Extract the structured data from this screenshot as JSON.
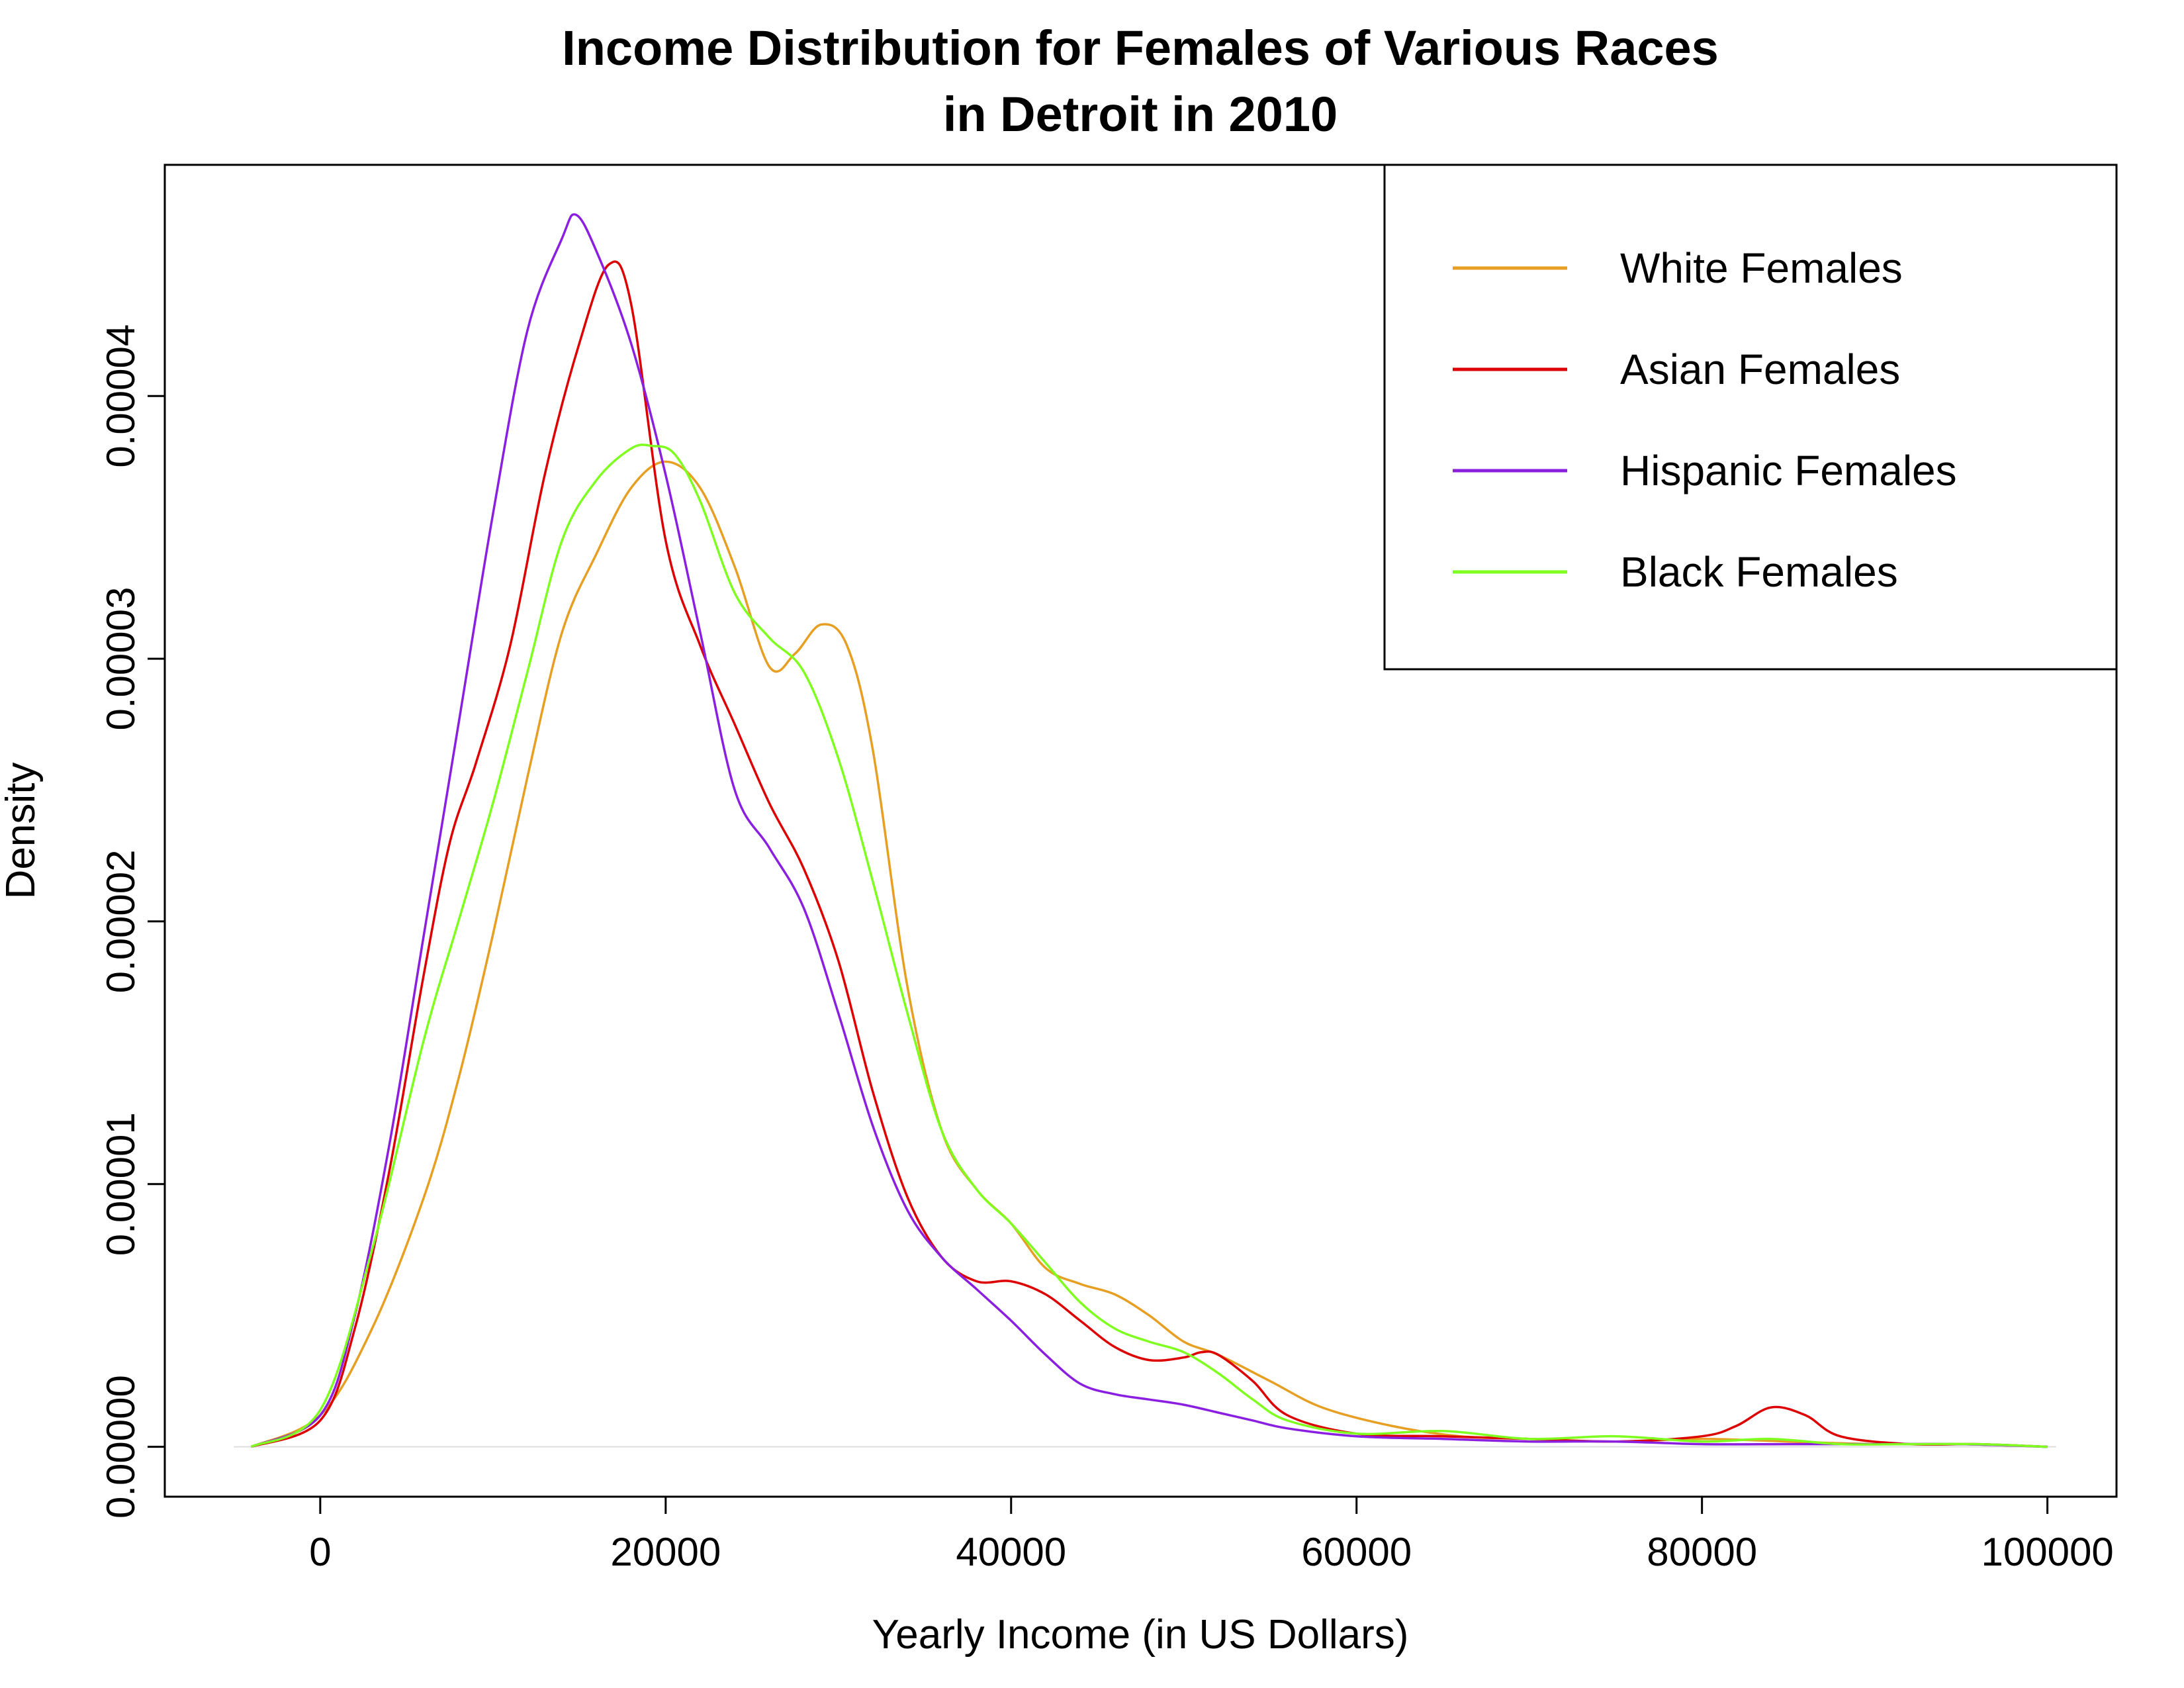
{
  "chart_data": {
    "type": "line",
    "title": "Income Distribution for Females of Various Races",
    "subtitle": "in Detroit in 2010",
    "xlabel": "Yearly Income (in US Dollars)",
    "ylabel": "Density",
    "xlim": [
      -9000,
      104000
    ],
    "ylim": [
      -1.9e-06,
      4.88e-05
    ],
    "x_ticks": [
      0,
      20000,
      40000,
      60000,
      80000,
      100000
    ],
    "x_tick_labels": [
      "0",
      "20000",
      "40000",
      "60000",
      "80000",
      "100000"
    ],
    "y_ticks": [
      0,
      1e-05,
      2e-05,
      3e-05,
      4e-05
    ],
    "y_tick_labels": [
      "0.00000",
      "0.00001",
      "0.00002",
      "0.00003",
      "0.00004"
    ],
    "grid": false,
    "legend_position": "top-right",
    "series": [
      {
        "name": "White Females",
        "color": "#E69F22",
        "x": [
          -4000,
          0,
          3000,
          6000,
          8000,
          10000,
          12000,
          14000,
          16000,
          18000,
          20000,
          22000,
          24000,
          26000,
          27500,
          29000,
          30500,
          32000,
          34000,
          36000,
          38000,
          40000,
          42000,
          44000,
          46000,
          48000,
          50000,
          52000,
          55000,
          58000,
          62000,
          66000,
          70000,
          75000,
          80000,
          85000,
          90000,
          95000,
          100000
        ],
        "y": [
          0,
          1.2e-06,
          4.5e-06,
          9.5e-06,
          1.4e-05,
          1.95e-05,
          2.55e-05,
          3.1e-05,
          3.4e-05,
          3.65e-05,
          3.75e-05,
          3.65e-05,
          3.35e-05,
          2.97e-05,
          3.02e-05,
          3.13e-05,
          3.05e-05,
          2.65e-05,
          1.75e-05,
          1.2e-05,
          9.8e-06,
          8.5e-06,
          6.8e-06,
          6.2e-06,
          5.8e-06,
          5e-06,
          4e-06,
          3.5e-06,
          2.5e-06,
          1.5e-06,
          8e-07,
          4e-07,
          3e-07,
          2e-07,
          3e-07,
          2e-07,
          1e-07,
          1e-07,
          0
        ]
      },
      {
        "name": "Asian Females",
        "color": "#DD0000",
        "x": [
          -4000,
          0,
          2000,
          4000,
          6000,
          7500,
          9000,
          11000,
          13000,
          15000,
          16700,
          18000,
          20000,
          22000,
          24000,
          26000,
          28000,
          30000,
          32000,
          34000,
          36000,
          38000,
          40000,
          42000,
          44000,
          46000,
          48000,
          50000,
          51000,
          52000,
          54000,
          56000,
          60000,
          65000,
          70000,
          75000,
          80000,
          82000,
          84000,
          86000,
          88000,
          92000,
          96000,
          100000
        ],
        "y": [
          0,
          1e-06,
          4.5e-06,
          1.05e-05,
          1.8e-05,
          2.3e-05,
          2.6e-05,
          3.05e-05,
          3.7e-05,
          4.2e-05,
          4.5e-05,
          4.35e-05,
          3.45e-05,
          3.05e-05,
          2.75e-05,
          2.45e-05,
          2.2e-05,
          1.85e-05,
          1.35e-05,
          9.5e-06,
          7.2e-06,
          6.3e-06,
          6.3e-06,
          5.8e-06,
          4.8e-06,
          3.8e-06,
          3.3e-06,
          3.4e-06,
          3.6e-06,
          3.5e-06,
          2.5e-06,
          1.2e-06,
          5e-07,
          4e-07,
          3e-07,
          2e-07,
          4e-07,
          8e-07,
          1.5e-06,
          1.2e-06,
          4e-07,
          1e-07,
          1e-07,
          0
        ]
      },
      {
        "name": "Hispanic Females",
        "color": "#8A1FE0",
        "x": [
          -4000,
          0,
          2000,
          4000,
          6000,
          8000,
          10000,
          12000,
          14000,
          14800,
          16000,
          18000,
          20000,
          22000,
          24000,
          26000,
          28000,
          30000,
          32000,
          34000,
          36000,
          38000,
          40000,
          42000,
          44000,
          46000,
          48000,
          50000,
          52000,
          54000,
          56000,
          60000,
          65000,
          70000,
          75000,
          80000,
          85000,
          90000,
          95000,
          100000
        ],
        "y": [
          0,
          1.2e-06,
          5e-06,
          1.15e-05,
          1.95e-05,
          2.75e-05,
          3.55e-05,
          4.25e-05,
          4.6e-05,
          4.69e-05,
          4.55e-05,
          4.2e-05,
          3.7e-05,
          3.1e-05,
          2.5e-05,
          2.28e-05,
          2.05e-05,
          1.65e-05,
          1.22e-05,
          9e-06,
          7.2e-06,
          6e-06,
          4.8e-06,
          3.5e-06,
          2.4e-06,
          2e-06,
          1.8e-06,
          1.6e-06,
          1.3e-06,
          1e-06,
          7e-07,
          4e-07,
          3e-07,
          2e-07,
          2e-07,
          1e-07,
          1e-07,
          1e-07,
          1e-07,
          0
        ]
      },
      {
        "name": "Black Females",
        "color": "#7FFF20",
        "x": [
          -4000,
          0,
          3000,
          6000,
          8000,
          10000,
          12000,
          14000,
          16000,
          18000,
          19200,
          20500,
          22000,
          24000,
          26000,
          28000,
          30000,
          32000,
          34000,
          36000,
          38000,
          40000,
          42000,
          44000,
          46000,
          48000,
          50000,
          52000,
          54000,
          56000,
          60000,
          65000,
          70000,
          75000,
          80000,
          84000,
          88000,
          92000,
          96000,
          100000
        ],
        "y": [
          0,
          1.4e-06,
          7.5e-06,
          1.55e-05,
          2e-05,
          2.45e-05,
          2.95e-05,
          3.45e-05,
          3.68e-05,
          3.8e-05,
          3.81e-05,
          3.78e-05,
          3.6e-05,
          3.25e-05,
          3.08e-05,
          2.95e-05,
          2.62e-05,
          2.15e-05,
          1.65e-05,
          1.2e-05,
          9.8e-06,
          8.5e-06,
          7e-06,
          5.5e-06,
          4.5e-06,
          4e-06,
          3.6e-06,
          2.8e-06,
          1.8e-06,
          1e-06,
          5e-07,
          6e-07,
          3e-07,
          4e-07,
          2e-07,
          3e-07,
          1e-07,
          1e-07,
          1e-07,
          0
        ]
      }
    ]
  }
}
